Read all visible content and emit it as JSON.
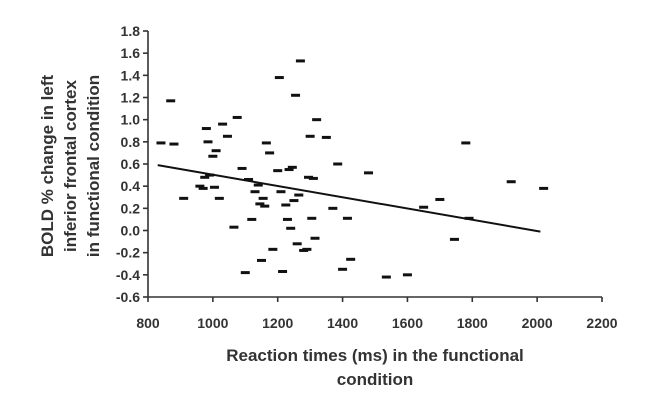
{
  "chart_data": {
    "type": "scatter",
    "xlabel": [
      "Reaction times (ms) in the functional",
      "condition"
    ],
    "ylabel": [
      "BOLD % change in left",
      "inferior frontal cortex",
      "in functional condition"
    ],
    "xlim": [
      800,
      2200
    ],
    "ylim": [
      -0.6,
      1.8
    ],
    "x_ticks": [
      800,
      1000,
      1200,
      1400,
      1600,
      1800,
      2000,
      2200
    ],
    "y_ticks": [
      -0.6,
      -0.4,
      -0.2,
      0.0,
      0.2,
      0.4,
      0.6,
      0.8,
      1.0,
      1.2,
      1.4,
      1.6,
      1.8
    ],
    "x_tick_labels": [
      "800",
      "1000",
      "1200",
      "1400",
      "1600",
      "1800",
      "2000",
      "2200"
    ],
    "y_tick_labels": [
      "-0.6",
      "-0.4",
      "-0.2",
      "0.0",
      "0.2",
      "0.4",
      "0.6",
      "0.8",
      "1.0",
      "1.2",
      "1.4",
      "1.6",
      "1.8"
    ],
    "marker": "dash",
    "grid": false,
    "series": [
      {
        "points": [
          [
            840,
            0.79
          ],
          [
            880,
            0.78
          ],
          [
            870,
            1.17
          ],
          [
            910,
            0.29
          ],
          [
            960,
            0.4
          ],
          [
            970,
            0.38
          ],
          [
            975,
            0.48
          ],
          [
            980,
            0.92
          ],
          [
            985,
            0.8
          ],
          [
            990,
            0.5
          ],
          [
            1000,
            0.67
          ],
          [
            1005,
            0.39
          ],
          [
            1010,
            0.72
          ],
          [
            1020,
            0.29
          ],
          [
            1030,
            0.96
          ],
          [
            1045,
            0.85
          ],
          [
            1065,
            0.03
          ],
          [
            1075,
            1.02
          ],
          [
            1090,
            0.56
          ],
          [
            1100,
            -0.38
          ],
          [
            1110,
            0.46
          ],
          [
            1120,
            0.1
          ],
          [
            1130,
            0.35
          ],
          [
            1140,
            0.41
          ],
          [
            1145,
            0.24
          ],
          [
            1150,
            -0.27
          ],
          [
            1155,
            0.29
          ],
          [
            1160,
            0.22
          ],
          [
            1165,
            0.79
          ],
          [
            1175,
            0.7
          ],
          [
            1185,
            -0.17
          ],
          [
            1200,
            0.54
          ],
          [
            1205,
            1.38
          ],
          [
            1210,
            0.35
          ],
          [
            1215,
            -0.37
          ],
          [
            1225,
            0.23
          ],
          [
            1230,
            0.1
          ],
          [
            1235,
            0.55
          ],
          [
            1240,
            0.02
          ],
          [
            1245,
            0.57
          ],
          [
            1250,
            0.27
          ],
          [
            1255,
            1.22
          ],
          [
            1260,
            -0.12
          ],
          [
            1265,
            0.32
          ],
          [
            1270,
            1.53
          ],
          [
            1280,
            -0.18
          ],
          [
            1290,
            -0.17
          ],
          [
            1295,
            0.48
          ],
          [
            1300,
            0.85
          ],
          [
            1305,
            0.11
          ],
          [
            1310,
            0.47
          ],
          [
            1315,
            -0.07
          ],
          [
            1320,
            1.0
          ],
          [
            1350,
            0.84
          ],
          [
            1370,
            0.2
          ],
          [
            1385,
            0.6
          ],
          [
            1400,
            -0.35
          ],
          [
            1415,
            0.11
          ],
          [
            1425,
            -0.26
          ],
          [
            1480,
            0.52
          ],
          [
            1535,
            -0.42
          ],
          [
            1600,
            -0.4
          ],
          [
            1650,
            0.21
          ],
          [
            1700,
            0.28
          ],
          [
            1745,
            -0.08
          ],
          [
            1780,
            0.79
          ],
          [
            1790,
            0.11
          ],
          [
            1920,
            0.44
          ],
          [
            2020,
            0.38
          ]
        ]
      }
    ],
    "trendline": {
      "x": [
        830,
        2010
      ],
      "y": [
        0.59,
        -0.01
      ]
    }
  }
}
